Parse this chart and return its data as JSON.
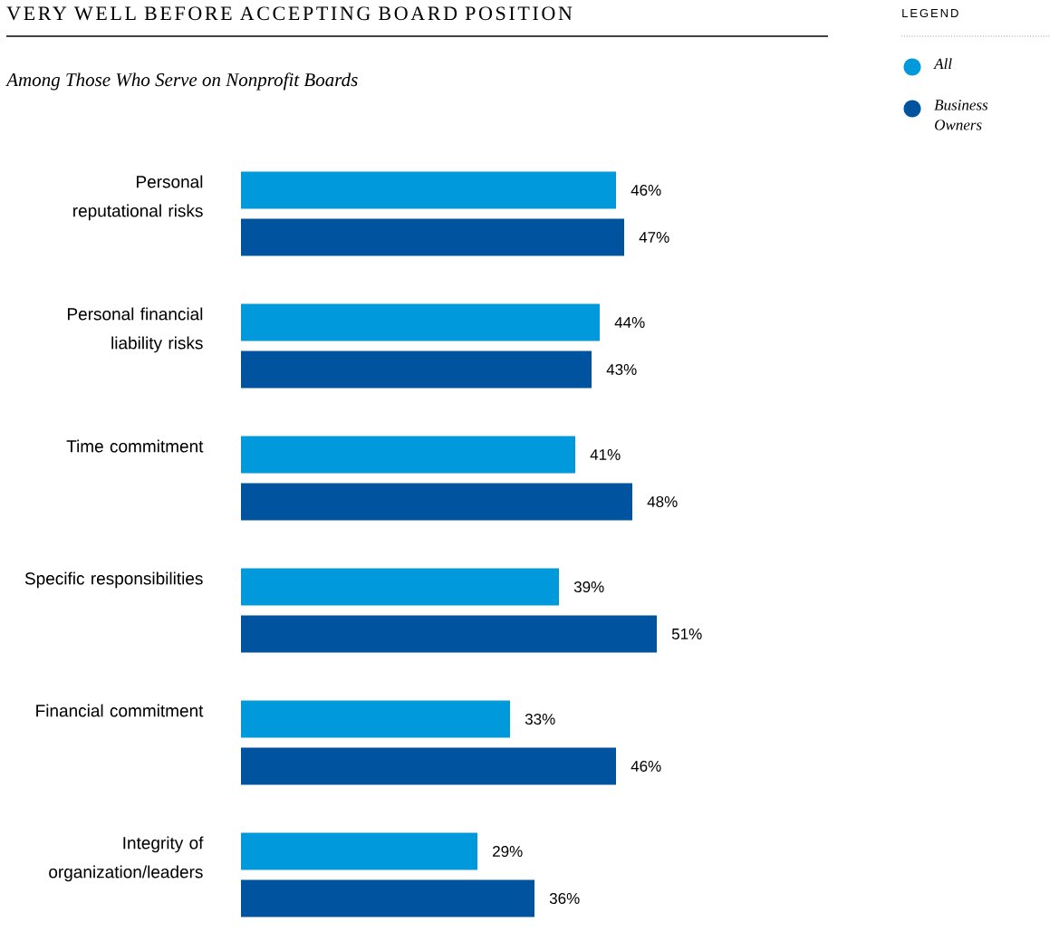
{
  "chart_data": {
    "type": "bar",
    "orientation": "horizontal",
    "title": "VERY WELL BEFORE ACCEPTING BOARD POSITION",
    "subtitle": "Among Those Who Serve on Nonprofit Boards",
    "legend_title": "LEGEND",
    "legend": "top right",
    "categories": [
      "Personal reputational risks",
      "Personal financial liability risks",
      "Time commitment",
      "Specific responsibilities",
      "Financial commitment",
      "Integrity of organization/leaders"
    ],
    "series": [
      {
        "name": "All",
        "color": "#0099dc",
        "values": [
          46,
          44,
          41,
          39,
          33,
          29
        ],
        "value_labels": [
          "46%",
          "44%",
          "41%",
          "39%",
          "33%",
          "29%"
        ]
      },
      {
        "name": "Business Owners",
        "color": "#00549f",
        "values": [
          47,
          43,
          48,
          51,
          46,
          36
        ],
        "value_labels": [
          "47%",
          "43%",
          "48%",
          "51%",
          "46%",
          "36%"
        ]
      }
    ]
  }
}
